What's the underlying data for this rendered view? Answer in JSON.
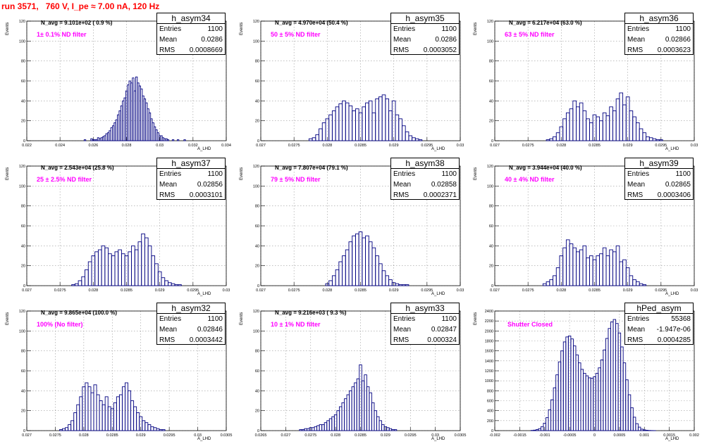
{
  "title": "run 3571,   760 V, I_pe ≈ 7.00 nA, 120 Hz",
  "stat_labels": {
    "entries": "Entries",
    "mean": "Mean",
    "rms": "RMS"
  },
  "chart_data": [
    {
      "type": "histogram",
      "name": "h_asym34",
      "entries": "1100",
      "mean": "0.0286",
      "rms": "0.0008669",
      "navg": "N_avg = 9.101e+02 ( 0.9 %)",
      "filter": "1± 0.1% ND filter",
      "xlabel": "A_LHD",
      "ylabel": "Events",
      "xlim": [
        0.022,
        0.034
      ],
      "ylim": [
        0,
        120
      ],
      "xticks": [
        0.022,
        0.024,
        0.026,
        0.028,
        0.03,
        0.032,
        0.034
      ],
      "xtick_labels": [
        "0.022",
        "0.024",
        "0.026",
        "0.028",
        "0.03",
        "0.032",
        "0.034"
      ],
      "yticks": [
        0,
        20,
        40,
        60,
        80,
        100,
        120
      ],
      "grid": true,
      "legend_position": "top-right",
      "centers": [
        0.0255,
        0.0256,
        0.0257,
        0.0258,
        0.0259,
        0.026,
        0.0261,
        0.0262,
        0.0263,
        0.0264,
        0.0265,
        0.0266,
        0.0267,
        0.0268,
        0.0269,
        0.027,
        0.0271,
        0.0272,
        0.0273,
        0.0274,
        0.0275,
        0.0276,
        0.0277,
        0.0278,
        0.0279,
        0.028,
        0.0281,
        0.0282,
        0.0283,
        0.0284,
        0.0285,
        0.0286,
        0.0287,
        0.0288,
        0.0289,
        0.029,
        0.0291,
        0.0292,
        0.0293,
        0.0294,
        0.0295,
        0.0296,
        0.0297,
        0.0298,
        0.0299,
        0.03,
        0.0301,
        0.0302,
        0.0303,
        0.0304,
        0.0305,
        0.0306,
        0.0307,
        0.0308,
        0.0309,
        0.031,
        0.0311,
        0.0312,
        0.0313,
        0.0314,
        0.0315,
        0.0316,
        0.0317
      ],
      "counts": [
        1,
        0,
        0,
        0,
        2,
        1,
        1,
        1,
        3,
        2,
        3,
        4,
        5,
        7,
        8,
        10,
        13,
        15,
        18,
        21,
        26,
        30,
        35,
        40,
        43,
        50,
        56,
        60,
        58,
        63,
        50,
        64,
        58,
        55,
        52,
        45,
        42,
        38,
        32,
        28,
        22,
        18,
        14,
        11,
        8,
        5,
        5,
        3,
        2,
        2,
        1,
        0,
        0,
        1,
        0,
        0,
        1,
        0,
        0,
        0,
        1,
        0,
        0
      ]
    },
    {
      "type": "histogram",
      "name": "h_asym35",
      "entries": "1100",
      "mean": "0.0286",
      "rms": "0.0003052",
      "navg": "N_avg = 4.970e+04 (50.4 %)",
      "filter": "50 ± 5% ND filter",
      "xlabel": "A_LHD",
      "ylabel": "Events",
      "xlim": [
        0.027,
        0.03
      ],
      "ylim": [
        0,
        120
      ],
      "xticks": [
        0.027,
        0.0275,
        0.028,
        0.0285,
        0.029,
        0.0295,
        0.03
      ],
      "xtick_labels": [
        "0.027",
        "0.0275",
        "0.028",
        "0.0285",
        "0.029",
        "0.0295",
        "0.03"
      ],
      "yticks": [
        0,
        20,
        40,
        60,
        80,
        100,
        120
      ],
      "grid": true,
      "legend_position": "top-right",
      "centers": [
        0.02775,
        0.0278,
        0.02785,
        0.0279,
        0.02795,
        0.028,
        0.02805,
        0.0281,
        0.02815,
        0.0282,
        0.02825,
        0.0283,
        0.02835,
        0.0284,
        0.02845,
        0.0285,
        0.02855,
        0.0286,
        0.02865,
        0.0287,
        0.02875,
        0.0288,
        0.02885,
        0.0289,
        0.02895,
        0.029,
        0.02905,
        0.0291,
        0.02915,
        0.0292,
        0.02925,
        0.0293,
        0.02935,
        0.0294
      ],
      "counts": [
        2,
        3,
        6,
        12,
        18,
        22,
        26,
        30,
        34,
        37,
        40,
        38,
        35,
        30,
        32,
        28,
        34,
        38,
        40,
        28,
        42,
        44,
        46,
        42,
        30,
        40,
        26,
        22,
        15,
        9,
        5,
        3,
        2,
        1
      ]
    },
    {
      "type": "histogram",
      "name": "h_asym36",
      "entries": "1100",
      "mean": "0.02866",
      "rms": "0.0003623",
      "navg": "N_avg = 6.217e+04 (63.0 %)",
      "filter": "63 ± 5% ND filter",
      "xlabel": "A_LHD",
      "ylabel": "Events",
      "xlim": [
        0.027,
        0.03
      ],
      "ylim": [
        0,
        120
      ],
      "xticks": [
        0.027,
        0.0275,
        0.028,
        0.0285,
        0.029,
        0.0295,
        0.03
      ],
      "xtick_labels": [
        "0.027",
        "0.0275",
        "0.028",
        "0.0285",
        "0.029",
        "0.0295",
        "0.03"
      ],
      "yticks": [
        0,
        20,
        40,
        60,
        80,
        100,
        120
      ],
      "grid": true,
      "legend_position": "top-right",
      "centers": [
        0.0278,
        0.02785,
        0.0279,
        0.02795,
        0.028,
        0.02805,
        0.0281,
        0.02815,
        0.0282,
        0.02825,
        0.0283,
        0.02835,
        0.0284,
        0.02845,
        0.0285,
        0.02855,
        0.0286,
        0.02865,
        0.0287,
        0.02875,
        0.0288,
        0.02885,
        0.0289,
        0.02895,
        0.029,
        0.02905,
        0.0291,
        0.02915,
        0.0292,
        0.02925,
        0.0293,
        0.02935,
        0.0294,
        0.02945,
        0.0295
      ],
      "counts": [
        1,
        2,
        4,
        8,
        14,
        22,
        28,
        32,
        40,
        34,
        38,
        30,
        22,
        18,
        26,
        24,
        20,
        28,
        25,
        34,
        30,
        42,
        48,
        36,
        44,
        30,
        24,
        18,
        12,
        8,
        4,
        3,
        2,
        1,
        1
      ]
    },
    {
      "type": "histogram",
      "name": "h_asym37",
      "entries": "1100",
      "mean": "0.02856",
      "rms": "0.0003101",
      "navg": "N_avg = 2.543e+04 (25.8 %)",
      "filter": "25 ± 2.5% ND filter",
      "xlabel": "A_LHD",
      "ylabel": "Events",
      "xlim": [
        0.027,
        0.03
      ],
      "ylim": [
        0,
        120
      ],
      "xticks": [
        0.027,
        0.0275,
        0.028,
        0.0285,
        0.029,
        0.0295,
        0.03
      ],
      "xtick_labels": [
        "0.027",
        "0.0275",
        "0.028",
        "0.0285",
        "0.029",
        "0.0295",
        "0.03"
      ],
      "yticks": [
        0,
        20,
        40,
        60,
        80,
        100,
        120
      ],
      "grid": true,
      "legend_position": "top-right",
      "centers": [
        0.0277,
        0.02775,
        0.0278,
        0.02785,
        0.0279,
        0.02795,
        0.028,
        0.02805,
        0.0281,
        0.02815,
        0.0282,
        0.02825,
        0.0283,
        0.02835,
        0.0284,
        0.02845,
        0.0285,
        0.02855,
        0.0286,
        0.02865,
        0.0287,
        0.02875,
        0.0288,
        0.02885,
        0.0289,
        0.02895,
        0.029,
        0.02905,
        0.0291,
        0.02915,
        0.0292,
        0.02925,
        0.0293
      ],
      "counts": [
        1,
        2,
        5,
        9,
        16,
        24,
        30,
        34,
        36,
        40,
        38,
        32,
        30,
        34,
        36,
        32,
        30,
        34,
        40,
        36,
        44,
        52,
        48,
        40,
        30,
        22,
        14,
        8,
        5,
        3,
        2,
        1,
        1
      ]
    },
    {
      "type": "histogram",
      "name": "h_asym38",
      "entries": "1100",
      "mean": "0.02858",
      "rms": "0.0002371",
      "navg": "N_avg = 7.807e+04 (79.1 %)",
      "filter": "79 ± 5% ND filter",
      "xlabel": "A_LHD",
      "ylabel": "Events",
      "xlim": [
        0.027,
        0.03
      ],
      "ylim": [
        0,
        120
      ],
      "xticks": [
        0.027,
        0.0275,
        0.028,
        0.0285,
        0.029,
        0.0295,
        0.03
      ],
      "xtick_labels": [
        "0.027",
        "0.0275",
        "0.028",
        "0.0285",
        "0.029",
        "0.0295",
        "0.03"
      ],
      "yticks": [
        0,
        20,
        40,
        60,
        80,
        100,
        120
      ],
      "grid": true,
      "legend_position": "top-right",
      "centers": [
        0.028,
        0.02805,
        0.0281,
        0.02815,
        0.0282,
        0.02825,
        0.0283,
        0.02835,
        0.0284,
        0.02845,
        0.0285,
        0.02855,
        0.0286,
        0.02865,
        0.0287,
        0.02875,
        0.0288,
        0.02885,
        0.0289,
        0.02895,
        0.029,
        0.02905,
        0.0291,
        0.02915,
        0.0292
      ],
      "counts": [
        2,
        5,
        10,
        16,
        24,
        30,
        36,
        44,
        50,
        52,
        54,
        48,
        50,
        44,
        38,
        30,
        22,
        15,
        10,
        6,
        3,
        2,
        1,
        1,
        1
      ]
    },
    {
      "type": "histogram",
      "name": "h_asym39",
      "entries": "1100",
      "mean": "0.02865",
      "rms": "0.0003406",
      "navg": "N_avg = 3.944e+04 (40.0 %)",
      "filter": "40 ± 4% ND filter",
      "xlabel": "A_LHD",
      "ylabel": "Events",
      "xlim": [
        0.027,
        0.03
      ],
      "ylim": [
        0,
        120
      ],
      "xticks": [
        0.027,
        0.0275,
        0.028,
        0.0285,
        0.029,
        0.0295,
        0.03
      ],
      "xtick_labels": [
        "0.027",
        "0.0275",
        "0.028",
        "0.0285",
        "0.029",
        "0.0295",
        "0.03"
      ],
      "yticks": [
        0,
        20,
        40,
        60,
        80,
        100,
        120
      ],
      "grid": true,
      "legend_position": "top-right",
      "centers": [
        0.02775,
        0.0278,
        0.02785,
        0.0279,
        0.02795,
        0.028,
        0.02805,
        0.0281,
        0.02815,
        0.0282,
        0.02825,
        0.0283,
        0.02835,
        0.0284,
        0.02845,
        0.0285,
        0.02855,
        0.0286,
        0.02865,
        0.0287,
        0.02875,
        0.0288,
        0.02885,
        0.0289,
        0.02895,
        0.029,
        0.02905,
        0.0291,
        0.02915,
        0.0292,
        0.02925
      ],
      "counts": [
        2,
        4,
        6,
        10,
        18,
        30,
        38,
        46,
        42,
        38,
        34,
        36,
        40,
        28,
        30,
        26,
        30,
        32,
        38,
        30,
        36,
        34,
        40,
        24,
        26,
        18,
        10,
        6,
        4,
        2,
        1
      ]
    },
    {
      "type": "histogram",
      "name": "h_asym32",
      "entries": "1100",
      "mean": "0.02846",
      "rms": "0.0003442",
      "navg": "N_avg = 9.865e+04 (100.0 %)",
      "filter": "100% (No filter)",
      "xlabel": "A_LHD",
      "ylabel": "Events",
      "xlim": [
        0.027,
        0.0305
      ],
      "ylim": [
        0,
        120
      ],
      "xticks": [
        0.027,
        0.0275,
        0.028,
        0.0285,
        0.029,
        0.0295,
        0.03,
        0.0305
      ],
      "xtick_labels": [
        "0.027",
        "0.0275",
        "0.028",
        "0.0285",
        "0.029",
        "0.0295",
        "0.03",
        "0.0305"
      ],
      "yticks": [
        0,
        20,
        40,
        60,
        80,
        100,
        120
      ],
      "grid": true,
      "legend_position": "top-right",
      "centers": [
        0.0276,
        0.02765,
        0.0277,
        0.02775,
        0.0278,
        0.02785,
        0.0279,
        0.02795,
        0.028,
        0.02805,
        0.0281,
        0.02815,
        0.0282,
        0.02825,
        0.0283,
        0.02835,
        0.0284,
        0.02845,
        0.0285,
        0.02855,
        0.0286,
        0.02865,
        0.0287,
        0.02875,
        0.0288,
        0.02885,
        0.0289,
        0.02895,
        0.029,
        0.02905,
        0.0291,
        0.02915,
        0.0292,
        0.02925,
        0.0293,
        0.02935,
        0.0294
      ],
      "counts": [
        1,
        2,
        3,
        6,
        10,
        18,
        26,
        34,
        44,
        48,
        44,
        38,
        46,
        36,
        30,
        26,
        34,
        24,
        22,
        28,
        34,
        36,
        44,
        48,
        40,
        30,
        24,
        18,
        14,
        10,
        8,
        6,
        4,
        3,
        2,
        1,
        1
      ]
    },
    {
      "type": "histogram",
      "name": "h_asym33",
      "entries": "1100",
      "mean": "0.02847",
      "rms": "0.000324",
      "navg": "N_avg = 9.216e+03 ( 9.3 %)",
      "filter": "10 ± 1% ND filter",
      "xlabel": "A_LHD",
      "ylabel": "Events",
      "xlim": [
        0.0265,
        0.0305
      ],
      "ylim": [
        0,
        120
      ],
      "xticks": [
        0.0265,
        0.027,
        0.0275,
        0.028,
        0.0285,
        0.029,
        0.0295,
        0.03,
        0.0305
      ],
      "xtick_labels": [
        "0.0265",
        "0.027",
        "0.0275",
        "0.028",
        "0.0285",
        "0.029",
        "0.0295",
        "0.03",
        "0.0305"
      ],
      "yticks": [
        0,
        20,
        40,
        60,
        80,
        100,
        120
      ],
      "grid": true,
      "legend_position": "top-right",
      "centers": [
        0.0273,
        0.02735,
        0.0274,
        0.02745,
        0.0275,
        0.02755,
        0.0276,
        0.02765,
        0.0277,
        0.02775,
        0.0278,
        0.02785,
        0.0279,
        0.02795,
        0.028,
        0.02805,
        0.0281,
        0.02815,
        0.0282,
        0.02825,
        0.0283,
        0.02835,
        0.0284,
        0.02845,
        0.0285,
        0.02855,
        0.0286,
        0.02865,
        0.0287,
        0.02875,
        0.0288,
        0.02885,
        0.0289,
        0.02895,
        0.029,
        0.02905,
        0.0291,
        0.02915,
        0.0292
      ],
      "counts": [
        1,
        1,
        2,
        2,
        3,
        3,
        4,
        5,
        6,
        6,
        8,
        10,
        12,
        14,
        16,
        20,
        24,
        28,
        32,
        36,
        40,
        44,
        48,
        52,
        66,
        50,
        56,
        44,
        38,
        28,
        20,
        14,
        10,
        6,
        4,
        3,
        2,
        1,
        1
      ]
    },
    {
      "type": "histogram",
      "name": "hPed_asym",
      "entries": "55368",
      "mean": "-1.947e-06",
      "rms": "0.0004285",
      "navg": "",
      "filter": "Shutter Closed",
      "xlabel": "A_LHD",
      "ylabel": "Events",
      "xlim": [
        -0.002,
        0.002
      ],
      "ylim": [
        0,
        2400
      ],
      "xticks": [
        -0.002,
        -0.0015,
        -0.001,
        -0.0005,
        0,
        0.0005,
        0.001,
        0.0015,
        0.002
      ],
      "xtick_labels": [
        "-0.002",
        "-0.0015",
        "-0.001",
        "-0.0005",
        "0",
        "0.0005",
        "0.001",
        "0.0015",
        "0.002"
      ],
      "yticks": [
        0,
        200,
        400,
        600,
        800,
        1000,
        1200,
        1400,
        1600,
        1800,
        2000,
        2200,
        2400
      ],
      "grid": true,
      "legend_position": "top-right",
      "centers": [
        -0.00125,
        -0.0012,
        -0.00115,
        -0.0011,
        -0.00105,
        -0.001,
        -0.00095,
        -0.0009,
        -0.00085,
        -0.0008,
        -0.00075,
        -0.0007,
        -0.00065,
        -0.0006,
        -0.00055,
        -0.0005,
        -0.00045,
        -0.0004,
        -0.00035,
        -0.0003,
        -0.00025,
        -0.0002,
        -0.00015,
        -0.0001,
        -5e-05,
        0,
        5e-05,
        0.0001,
        0.00015,
        0.0002,
        0.00025,
        0.0003,
        0.00035,
        0.0004,
        0.00045,
        0.0005,
        0.00055,
        0.0006,
        0.00065,
        0.0007,
        0.00075,
        0.0008,
        0.00085,
        0.0009,
        0.00095,
        0.001,
        0.00105,
        0.0011,
        0.00115,
        0.0012,
        0.00125
      ],
      "counts": [
        5,
        10,
        20,
        40,
        80,
        150,
        260,
        420,
        620,
        860,
        1120,
        1380,
        1600,
        1780,
        1880,
        1900,
        1840,
        1700,
        1520,
        1360,
        1230,
        1150,
        1100,
        1060,
        1050,
        1080,
        1150,
        1260,
        1420,
        1620,
        1850,
        2050,
        2180,
        2230,
        2150,
        1960,
        1680,
        1360,
        1020,
        720,
        460,
        270,
        140,
        70,
        30,
        15,
        8,
        4,
        2,
        1,
        0
      ]
    }
  ]
}
